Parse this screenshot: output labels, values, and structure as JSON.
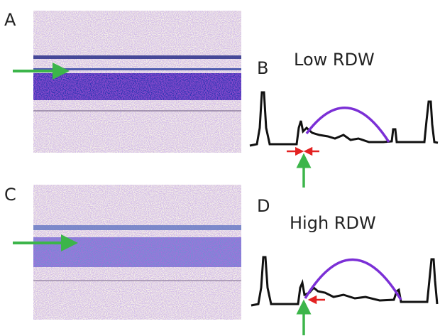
{
  "panels": [
    {
      "label": "A"
    },
    {
      "label": "B",
      "title": "Low RDW"
    },
    {
      "label": "C"
    },
    {
      "label": "D",
      "title": "High RDW"
    }
  ]
}
